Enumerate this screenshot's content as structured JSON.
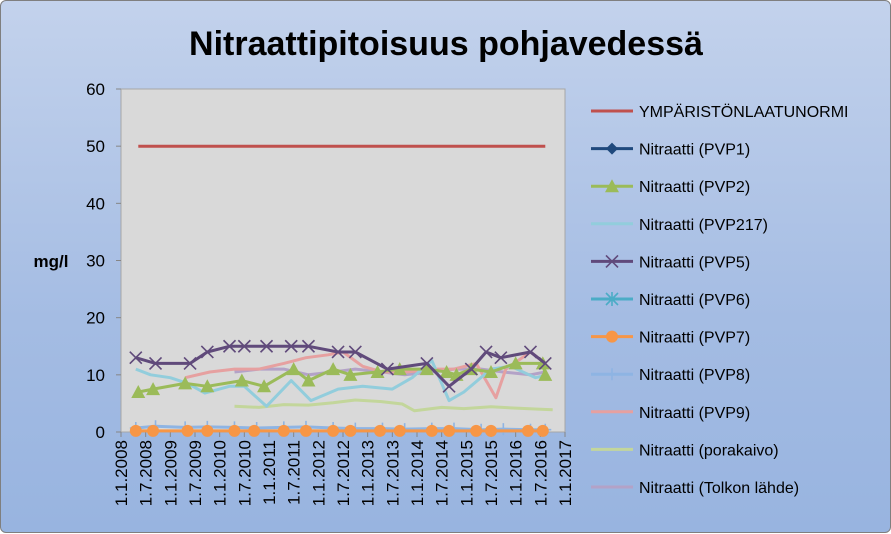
{
  "chart_data": {
    "type": "line",
    "title": "Nitraattipitoisuus pohjavedessä",
    "xlabel": "",
    "ylabel": "mg/l",
    "ylim": [
      0,
      60
    ],
    "yticks": [
      0,
      10,
      20,
      30,
      40,
      50,
      60
    ],
    "x_categories": [
      "1.1.2008",
      "1.7.2008",
      "1.1.2009",
      "1.7.2009",
      "1.1.2010",
      "1.7.2010",
      "1.1.2011",
      "1.7.2011",
      "1.1.2012",
      "1.7.2012",
      "1.1.2013",
      "1.7.2013",
      "1.1.2014",
      "1.7.2014",
      "1.1.2015",
      "1.7.2015",
      "1.1.2016",
      "1.7.2016",
      "1.1.2017"
    ],
    "x_range": [
      2008.0,
      2017.0
    ],
    "grid": false,
    "legend_position": "right",
    "plot_background": "#d9d9d9",
    "series": [
      {
        "name": "YMPÄRISTÖNLAATUNORMI",
        "color": "#c0504d",
        "marker": "none",
        "width": 3,
        "points": [
          [
            2008.35,
            50
          ],
          [
            2016.6,
            50
          ]
        ]
      },
      {
        "name": "Nitraatti (PVP1)",
        "color": "#1f497d",
        "marker": "diamond",
        "width": 3,
        "points": []
      },
      {
        "name": "Nitraatti (PVP2)",
        "color": "#9bbb59",
        "marker": "triangle",
        "width": 3,
        "points": [
          [
            2008.35,
            7
          ],
          [
            2008.65,
            7.5
          ],
          [
            2009.3,
            8.5
          ],
          [
            2009.75,
            8
          ],
          [
            2010.45,
            9
          ],
          [
            2010.9,
            8
          ],
          [
            2011.5,
            11
          ],
          [
            2011.8,
            9
          ],
          [
            2012.3,
            11
          ],
          [
            2012.65,
            10
          ],
          [
            2013.2,
            10.5
          ],
          [
            2013.65,
            11
          ],
          [
            2014.2,
            11
          ],
          [
            2014.6,
            10.5
          ],
          [
            2014.8,
            10
          ],
          [
            2015.1,
            11
          ],
          [
            2015.5,
            10.5
          ],
          [
            2016.0,
            12
          ],
          [
            2016.55,
            12
          ],
          [
            2016.6,
            10
          ]
        ]
      },
      {
        "name": "Nitraatti (PVP217)",
        "color": "#92cddc",
        "marker": "none",
        "width": 3,
        "points": [
          [
            2008.3,
            11
          ],
          [
            2008.6,
            10
          ],
          [
            2009.0,
            9.5
          ],
          [
            2009.35,
            8.5
          ],
          [
            2009.7,
            6.8
          ],
          [
            2010.2,
            8
          ],
          [
            2010.5,
            8
          ],
          [
            2010.95,
            4.5
          ],
          [
            2011.45,
            9
          ],
          [
            2011.85,
            5.5
          ],
          [
            2012.4,
            7.5
          ],
          [
            2012.9,
            8
          ],
          [
            2013.5,
            7.5
          ],
          [
            2013.9,
            9.5
          ],
          [
            2014.3,
            12.5
          ],
          [
            2014.65,
            5.5
          ],
          [
            2014.95,
            7
          ],
          [
            2015.5,
            11
          ],
          [
            2015.9,
            11.5
          ],
          [
            2016.4,
            9.5
          ],
          [
            2016.65,
            10
          ]
        ]
      },
      {
        "name": "Nitraatti (PVP5)",
        "color": "#604a7b",
        "marker": "x",
        "width": 3,
        "points": [
          [
            2008.3,
            13
          ],
          [
            2008.7,
            12
          ],
          [
            2009.4,
            12
          ],
          [
            2009.75,
            14
          ],
          [
            2010.2,
            15
          ],
          [
            2010.5,
            15
          ],
          [
            2010.95,
            15
          ],
          [
            2011.45,
            15
          ],
          [
            2011.8,
            15
          ],
          [
            2012.4,
            14
          ],
          [
            2012.75,
            14
          ],
          [
            2013.4,
            11
          ],
          [
            2014.2,
            12
          ],
          [
            2014.65,
            8
          ],
          [
            2015.1,
            11
          ],
          [
            2015.4,
            14
          ],
          [
            2015.7,
            13
          ],
          [
            2016.3,
            14
          ],
          [
            2016.6,
            12
          ]
        ]
      },
      {
        "name": "Nitraatti (PVP6)",
        "color": "#4bacc6",
        "marker": "star",
        "width": 3,
        "points": []
      },
      {
        "name": "Nitraatti (PVP7)",
        "color": "#f79646",
        "marker": "circle",
        "width": 3,
        "points": [
          [
            2008.3,
            0.2
          ],
          [
            2008.65,
            0.2
          ],
          [
            2009.35,
            0.2
          ],
          [
            2009.75,
            0.2
          ],
          [
            2010.3,
            0.2
          ],
          [
            2010.7,
            0.2
          ],
          [
            2011.3,
            0.2
          ],
          [
            2011.75,
            0.2
          ],
          [
            2012.3,
            0.2
          ],
          [
            2012.65,
            0.2
          ],
          [
            2013.25,
            0.2
          ],
          [
            2013.65,
            0.2
          ],
          [
            2014.3,
            0.2
          ],
          [
            2014.65,
            0.2
          ],
          [
            2015.2,
            0.2
          ],
          [
            2015.5,
            0.2
          ],
          [
            2016.25,
            0.2
          ],
          [
            2016.55,
            0.2
          ]
        ]
      },
      {
        "name": "Nitraatti (PVP8)",
        "color": "#8eb4e3",
        "marker": "plus",
        "width": 3,
        "points": [
          [
            2008.3,
            0.7
          ],
          [
            2008.7,
            1
          ],
          [
            2009.3,
            0.8
          ],
          [
            2009.75,
            0.9
          ],
          [
            2010.3,
            0.8
          ],
          [
            2010.75,
            0.7
          ],
          [
            2011.3,
            0.8
          ],
          [
            2011.75,
            0.9
          ],
          [
            2012.3,
            0.7
          ],
          [
            2012.75,
            0.6
          ],
          [
            2013.3,
            0.6
          ],
          [
            2013.75,
            0.5
          ],
          [
            2014.3,
            0.6
          ],
          [
            2014.75,
            0.6
          ],
          [
            2015.3,
            0.4
          ],
          [
            2015.75,
            0.5
          ],
          [
            2016.3,
            0.4
          ],
          [
            2016.6,
            0.4
          ]
        ]
      },
      {
        "name": "Nitraatti (PVP9)",
        "color": "#e6a0a0",
        "marker": "none",
        "width": 3,
        "points": [
          [
            2009.3,
            9.5
          ],
          [
            2009.8,
            10.5
          ],
          [
            2010.3,
            11
          ],
          [
            2010.8,
            11
          ],
          [
            2011.3,
            12
          ],
          [
            2011.75,
            13
          ],
          [
            2012.2,
            13.5
          ],
          [
            2012.5,
            14
          ],
          [
            2012.9,
            11.5
          ],
          [
            2013.3,
            10.5
          ],
          [
            2013.8,
            10.5
          ],
          [
            2014.3,
            11
          ],
          [
            2014.75,
            11
          ],
          [
            2015.2,
            12
          ],
          [
            2015.6,
            6
          ],
          [
            2015.8,
            11
          ],
          [
            2016.3,
            14
          ],
          [
            2016.6,
            12
          ]
        ]
      },
      {
        "name": "Nitraatti (porakaivo)",
        "color": "#c3d69b",
        "marker": "none",
        "width": 3,
        "points": [
          [
            2010.3,
            4.5
          ],
          [
            2010.8,
            4.3
          ],
          [
            2011.3,
            4.8
          ],
          [
            2011.8,
            4.7
          ],
          [
            2012.3,
            5.1
          ],
          [
            2012.75,
            5.6
          ],
          [
            2013.3,
            5.3
          ],
          [
            2013.7,
            4.9
          ],
          [
            2013.95,
            3.7
          ],
          [
            2014.5,
            4.3
          ],
          [
            2014.95,
            4.1
          ],
          [
            2015.5,
            4.4
          ],
          [
            2015.95,
            4.2
          ],
          [
            2016.45,
            4
          ],
          [
            2016.75,
            3.9
          ]
        ]
      },
      {
        "name": "Nitraatti (Tolkon lähde)",
        "color": "#b3a2c7",
        "marker": "none",
        "width": 3,
        "points": [
          [
            2010.3,
            10.5
          ],
          [
            2010.8,
            11
          ],
          [
            2011.3,
            11
          ],
          [
            2011.8,
            10
          ],
          [
            2012.3,
            10.5
          ],
          [
            2012.75,
            11
          ],
          [
            2013.3,
            10.5
          ],
          [
            2013.75,
            10
          ],
          [
            2014.3,
            10.5
          ],
          [
            2014.75,
            11
          ],
          [
            2015.3,
            11
          ],
          [
            2015.75,
            10.5
          ],
          [
            2016.3,
            10
          ],
          [
            2016.6,
            10.5
          ]
        ]
      }
    ]
  }
}
